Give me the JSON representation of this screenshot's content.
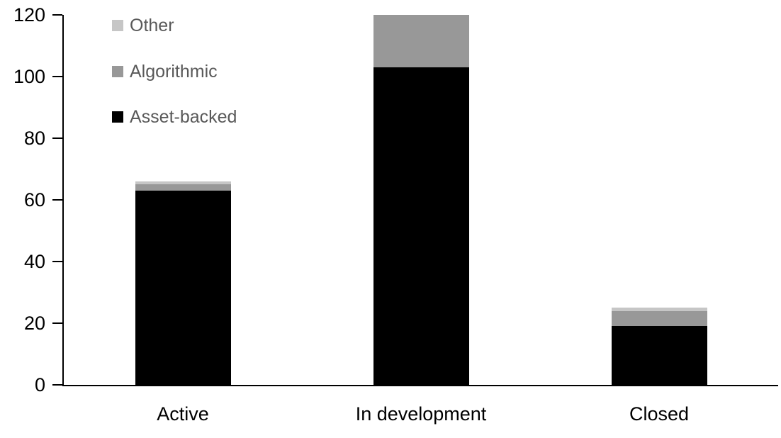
{
  "chart_data": {
    "type": "bar",
    "stacked": true,
    "title": "",
    "xlabel": "",
    "ylabel": "",
    "categories": [
      "Active",
      "In development",
      "Closed"
    ],
    "series": [
      {
        "name": "Asset-backed",
        "color": "#000000",
        "values": [
          63,
          103,
          19
        ]
      },
      {
        "name": "Algorithmic",
        "color": "#989898",
        "values": [
          2,
          17,
          5
        ]
      },
      {
        "name": "Other",
        "color": "#c6c6c6",
        "values": [
          1,
          0,
          1
        ]
      }
    ],
    "totals": [
      66,
      120,
      25
    ],
    "ylim": [
      0,
      120
    ],
    "yticks": [
      0,
      20,
      40,
      60,
      80,
      100,
      120
    ],
    "grid": false,
    "legend_position": "top-left",
    "legend_order": [
      "Other",
      "Algorithmic",
      "Asset-backed"
    ]
  },
  "colors": {
    "background": "#ffffff",
    "axis": "#000000",
    "tick_label_text": "#000000",
    "category_label_text": "#000000",
    "legend_text": "#595959"
  }
}
